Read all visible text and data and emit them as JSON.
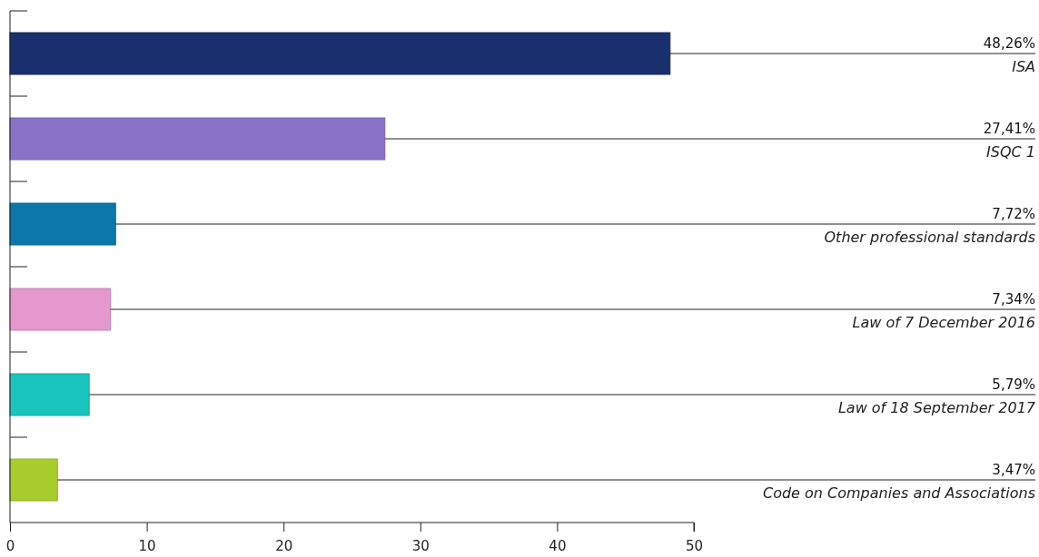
{
  "chart_data": {
    "type": "bar",
    "orientation": "horizontal",
    "categories": [
      "ISA",
      "ISQC 1",
      "Other professional standards",
      "Law of 7 December 2016",
      "Law of 18 September 2017",
      "Code on Companies and Associations"
    ],
    "values": [
      48.26,
      27.41,
      7.72,
      7.34,
      5.79,
      3.47
    ],
    "value_labels": [
      "48,26%",
      "27,41%",
      "7,72%",
      "7,34%",
      "5,79%",
      "3,47%"
    ],
    "colors": [
      "#1a2f6e",
      "#8a72c8",
      "#0a78a8",
      "#e498cc",
      "#18c4bc",
      "#a8cc2c"
    ],
    "xlim": [
      0,
      50
    ],
    "xticks": [
      0,
      10,
      20,
      30,
      40,
      50
    ],
    "grid": false
  }
}
